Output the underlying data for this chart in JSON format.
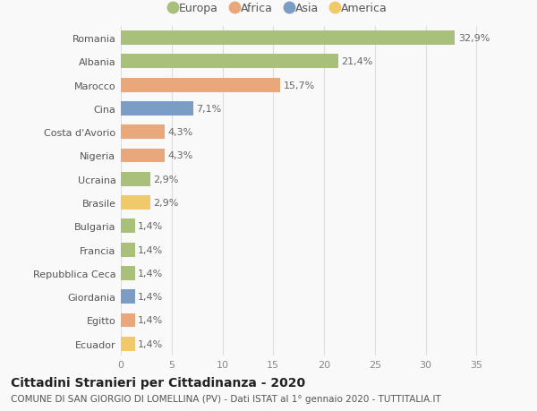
{
  "categories": [
    "Romania",
    "Albania",
    "Marocco",
    "Cina",
    "Costa d'Avorio",
    "Nigeria",
    "Ucraina",
    "Brasile",
    "Bulgaria",
    "Francia",
    "Repubblica Ceca",
    "Giordania",
    "Egitto",
    "Ecuador"
  ],
  "values": [
    32.9,
    21.4,
    15.7,
    7.1,
    4.3,
    4.3,
    2.9,
    2.9,
    1.4,
    1.4,
    1.4,
    1.4,
    1.4,
    1.4
  ],
  "labels": [
    "32,9%",
    "21,4%",
    "15,7%",
    "7,1%",
    "4,3%",
    "4,3%",
    "2,9%",
    "2,9%",
    "1,4%",
    "1,4%",
    "1,4%",
    "1,4%",
    "1,4%",
    "1,4%"
  ],
  "colors": [
    "#a8c07a",
    "#a8c07a",
    "#e8a87c",
    "#7b9cc4",
    "#e8a87c",
    "#e8a87c",
    "#a8c07a",
    "#f0c96a",
    "#a8c07a",
    "#a8c07a",
    "#a8c07a",
    "#7b9cc4",
    "#e8a87c",
    "#f0c96a"
  ],
  "legend_labels": [
    "Europa",
    "Africa",
    "Asia",
    "America"
  ],
  "legend_colors": [
    "#a8c07a",
    "#e8a87c",
    "#7b9cc4",
    "#f0c96a"
  ],
  "xlim": [
    0,
    37
  ],
  "xticks": [
    0,
    5,
    10,
    15,
    20,
    25,
    30,
    35
  ],
  "title": "Cittadini Stranieri per Cittadinanza - 2020",
  "subtitle": "COMUNE DI SAN GIORGIO DI LOMELLINA (PV) - Dati ISTAT al 1° gennaio 2020 - TUTTITALIA.IT",
  "background_color": "#f9f9f9",
  "grid_color": "#dddddd",
  "bar_height": 0.6,
  "title_fontsize": 10,
  "subtitle_fontsize": 7.5,
  "label_fontsize": 8,
  "tick_fontsize": 8,
  "legend_fontsize": 9
}
